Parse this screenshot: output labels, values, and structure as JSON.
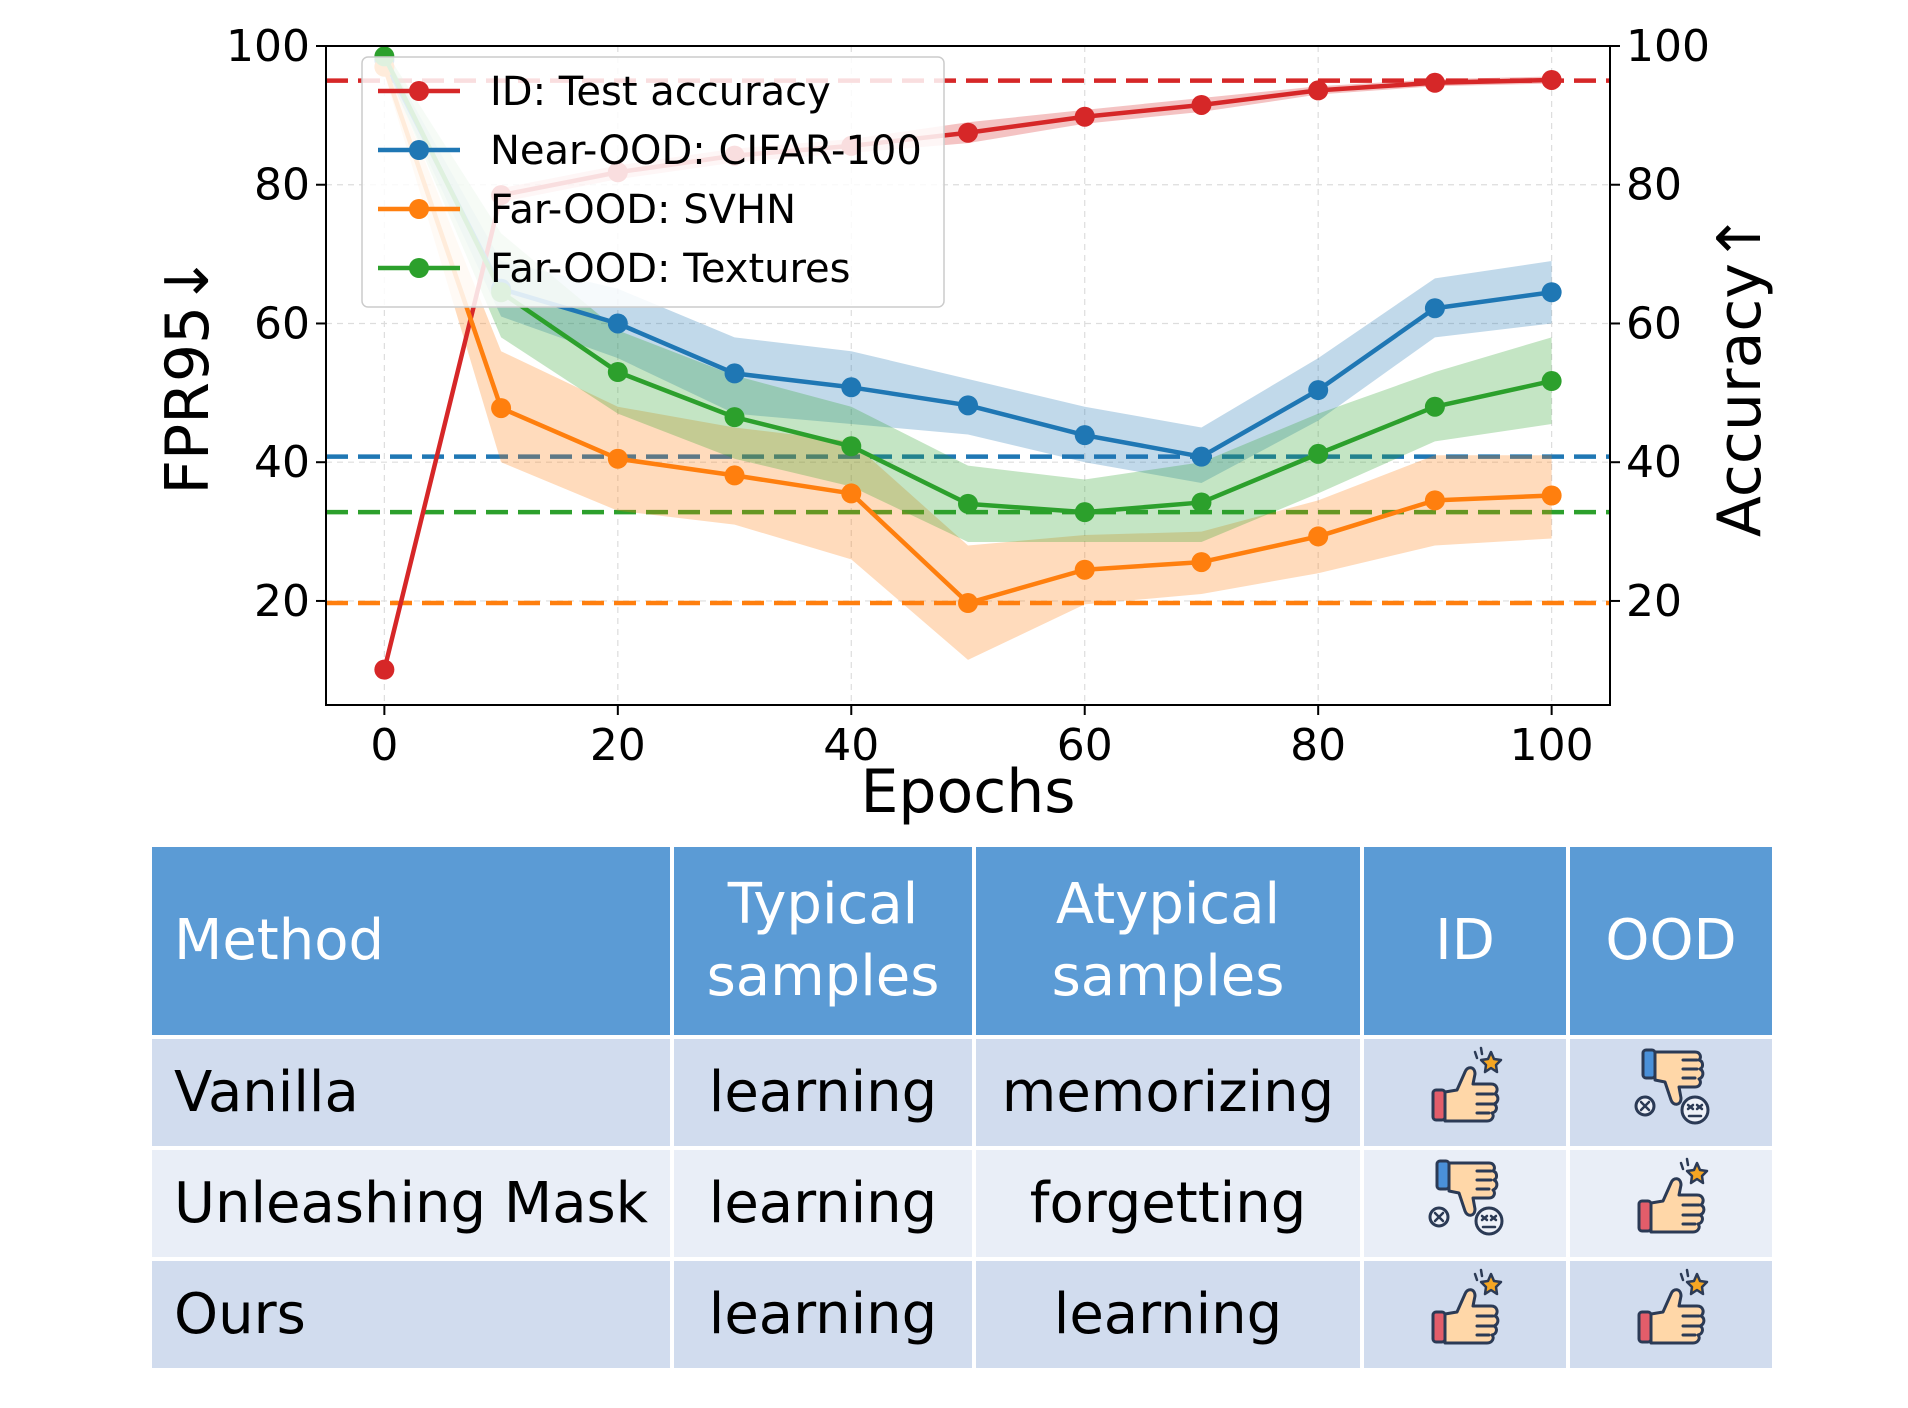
{
  "chart_data": {
    "type": "line",
    "xlabel": "Epochs",
    "ylabel_left": "FPR95↓",
    "ylabel_right": "Accuracy↑",
    "xlim": [
      -5,
      105
    ],
    "ylim": [
      5,
      100
    ],
    "xticks": [
      0,
      20,
      40,
      60,
      80,
      100
    ],
    "yticks": [
      20,
      40,
      60,
      80,
      100
    ],
    "grid": true,
    "legend": "top-left",
    "x": [
      0,
      10,
      20,
      30,
      40,
      50,
      60,
      70,
      80,
      90,
      100
    ],
    "series": [
      {
        "name": "ID: Test accuracy",
        "color": "#d62728",
        "axis": "right",
        "values": [
          10.1,
          78.5,
          81.8,
          84.2,
          85.6,
          87.5,
          89.8,
          91.5,
          93.6,
          94.7,
          95.1
        ],
        "band": [
          [
            10.1,
            10.1
          ],
          [
            77.5,
            79.5
          ],
          [
            80.8,
            82.8
          ],
          [
            83.2,
            85.2
          ],
          [
            84.6,
            86.6
          ],
          [
            86.0,
            89.0
          ],
          [
            88.8,
            90.8
          ],
          [
            90.5,
            92.5
          ],
          [
            93.0,
            94.2
          ],
          [
            94.2,
            95.2
          ],
          [
            94.6,
            95.6
          ]
        ],
        "reference": 95
      },
      {
        "name": "Near-OOD: CIFAR-100",
        "color": "#1f77b4",
        "axis": "left",
        "values": [
          98,
          65,
          60,
          52.8,
          50.8,
          48.2,
          43.9,
          40.8,
          50.4,
          62.2,
          64.5
        ],
        "band": [
          [
            97,
            99
          ],
          [
            61,
            69
          ],
          [
            55,
            65
          ],
          [
            47,
            58
          ],
          [
            45.5,
            56
          ],
          [
            44,
            52
          ],
          [
            40,
            48
          ],
          [
            37,
            45
          ],
          [
            46,
            55
          ],
          [
            58,
            66.5
          ],
          [
            60,
            69
          ]
        ],
        "reference": 40.8
      },
      {
        "name": "Far-OOD: SVHN",
        "color": "#ff7f0e",
        "axis": "left",
        "values": [
          97,
          47.8,
          40.5,
          38.1,
          35.5,
          19.7,
          24.5,
          25.6,
          29.3,
          34.5,
          35.2
        ],
        "band": [
          [
            96,
            98
          ],
          [
            40,
            56
          ],
          [
            33,
            48
          ],
          [
            31,
            45
          ],
          [
            26,
            43
          ],
          [
            11.5,
            28
          ],
          [
            19.5,
            29.5
          ],
          [
            21,
            30
          ],
          [
            24,
            34.5
          ],
          [
            28,
            41
          ],
          [
            29,
            41
          ]
        ],
        "reference": 19.7
      },
      {
        "name": "Far-OOD: Textures",
        "color": "#2ca02c",
        "axis": "left",
        "values": [
          98.5,
          64.5,
          53,
          46.5,
          42.3,
          34,
          32.8,
          34.2,
          41.2,
          48,
          51.7
        ],
        "band": [
          [
            97.5,
            99.5
          ],
          [
            58,
            73
          ],
          [
            47,
            59
          ],
          [
            40.5,
            52.5
          ],
          [
            36.5,
            48
          ],
          [
            28.5,
            39.5
          ],
          [
            28.5,
            37.5
          ],
          [
            28.5,
            40
          ],
          [
            35.5,
            47
          ],
          [
            43,
            53
          ],
          [
            45.5,
            58
          ]
        ],
        "reference": 32.8
      }
    ]
  },
  "table": {
    "headers": [
      "Method",
      "Typical samples",
      "Atypical samples",
      "ID",
      "OOD"
    ],
    "rows": [
      {
        "method": "Vanilla",
        "typical": "learning",
        "atypical": "memorizing",
        "id": "thumbs-up-icon",
        "ood": "thumbs-down-icon"
      },
      {
        "method": "Unleashing Mask",
        "typical": "learning",
        "atypical": "forgetting",
        "id": "thumbs-down-icon",
        "ood": "thumbs-up-icon"
      },
      {
        "method": "Ours",
        "typical": "learning",
        "atypical": "learning",
        "id": "thumbs-up-icon",
        "ood": "thumbs-up-icon"
      }
    ]
  }
}
